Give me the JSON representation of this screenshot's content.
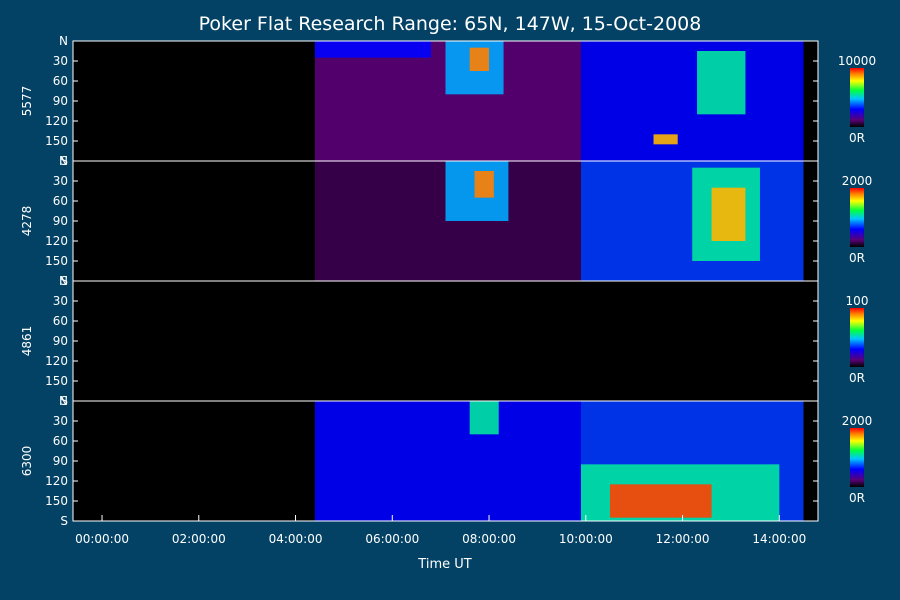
{
  "chart_data": {
    "type": "heatmap",
    "title": "Poker Flat Research Range: 65N, 147W, 15-Oct-2008",
    "xlabel": "Time UT",
    "x_tick_labels": [
      "00:00:00",
      "02:00:00",
      "04:00:00",
      "06:00:00",
      "08:00:00",
      "10:00:00",
      "12:00:00",
      "14:00:00"
    ],
    "x_tick_hours": [
      0,
      2,
      4,
      6,
      8,
      10,
      12,
      14
    ],
    "xlim_hours": [
      -0.6,
      14.8
    ],
    "data_start_hours": [
      4.4,
      4.4,
      4.4,
      4.4
    ],
    "y_tick_labels": [
      "N",
      "30",
      "60",
      "90",
      "120",
      "150",
      "S"
    ],
    "y_tick_values": [
      0,
      30,
      60,
      90,
      120,
      150,
      180
    ],
    "ylim": [
      0,
      180
    ],
    "panels": [
      {
        "name": "5577",
        "cbar_max": "10000",
        "cbar_min": "0R",
        "features": [
          {
            "t0": 4.4,
            "t1": 9.9,
            "y0": 0,
            "y1": 180,
            "level": 0.12
          },
          {
            "t0": 4.4,
            "t1": 6.8,
            "y0": 0,
            "y1": 25,
            "level": 0.3
          },
          {
            "t0": 7.1,
            "t1": 8.3,
            "y0": 0,
            "y1": 80,
            "level": 0.45
          },
          {
            "t0": 7.6,
            "t1": 8.0,
            "y0": 10,
            "y1": 45,
            "level": 0.9
          },
          {
            "t0": 9.9,
            "t1": 14.5,
            "y0": 0,
            "y1": 180,
            "level": 0.3
          },
          {
            "t0": 12.3,
            "t1": 13.3,
            "y0": 15,
            "y1": 110,
            "level": 0.55
          },
          {
            "t0": 11.4,
            "t1": 11.9,
            "y0": 140,
            "y1": 155,
            "level": 0.85
          }
        ]
      },
      {
        "name": "4278",
        "cbar_max": "2000",
        "cbar_min": "0R",
        "features": [
          {
            "t0": 4.4,
            "t1": 9.9,
            "y0": 0,
            "y1": 180,
            "level": 0.08
          },
          {
            "t0": 7.1,
            "t1": 8.4,
            "y0": 0,
            "y1": 90,
            "level": 0.45
          },
          {
            "t0": 7.7,
            "t1": 8.1,
            "y0": 15,
            "y1": 55,
            "level": 0.9
          },
          {
            "t0": 9.9,
            "t1": 14.5,
            "y0": 0,
            "y1": 180,
            "level": 0.35
          },
          {
            "t0": 12.2,
            "t1": 13.6,
            "y0": 10,
            "y1": 150,
            "level": 0.55
          },
          {
            "t0": 12.6,
            "t1": 13.3,
            "y0": 40,
            "y1": 120,
            "level": 0.85
          }
        ]
      },
      {
        "name": "4861",
        "cbar_max": "100",
        "cbar_min": "0R",
        "features": []
      },
      {
        "name": "6300",
        "cbar_max": "2000",
        "cbar_min": "0R",
        "features": [
          {
            "t0": 4.4,
            "t1": 9.9,
            "y0": 0,
            "y1": 180,
            "level": 0.3
          },
          {
            "t0": 7.6,
            "t1": 8.2,
            "y0": 0,
            "y1": 50,
            "level": 0.55
          },
          {
            "t0": 9.9,
            "t1": 14.5,
            "y0": 0,
            "y1": 180,
            "level": 0.35
          },
          {
            "t0": 9.9,
            "t1": 14.0,
            "y0": 95,
            "y1": 180,
            "level": 0.55
          },
          {
            "t0": 10.5,
            "t1": 12.6,
            "y0": 125,
            "y1": 175,
            "level": 0.95
          }
        ]
      }
    ]
  }
}
